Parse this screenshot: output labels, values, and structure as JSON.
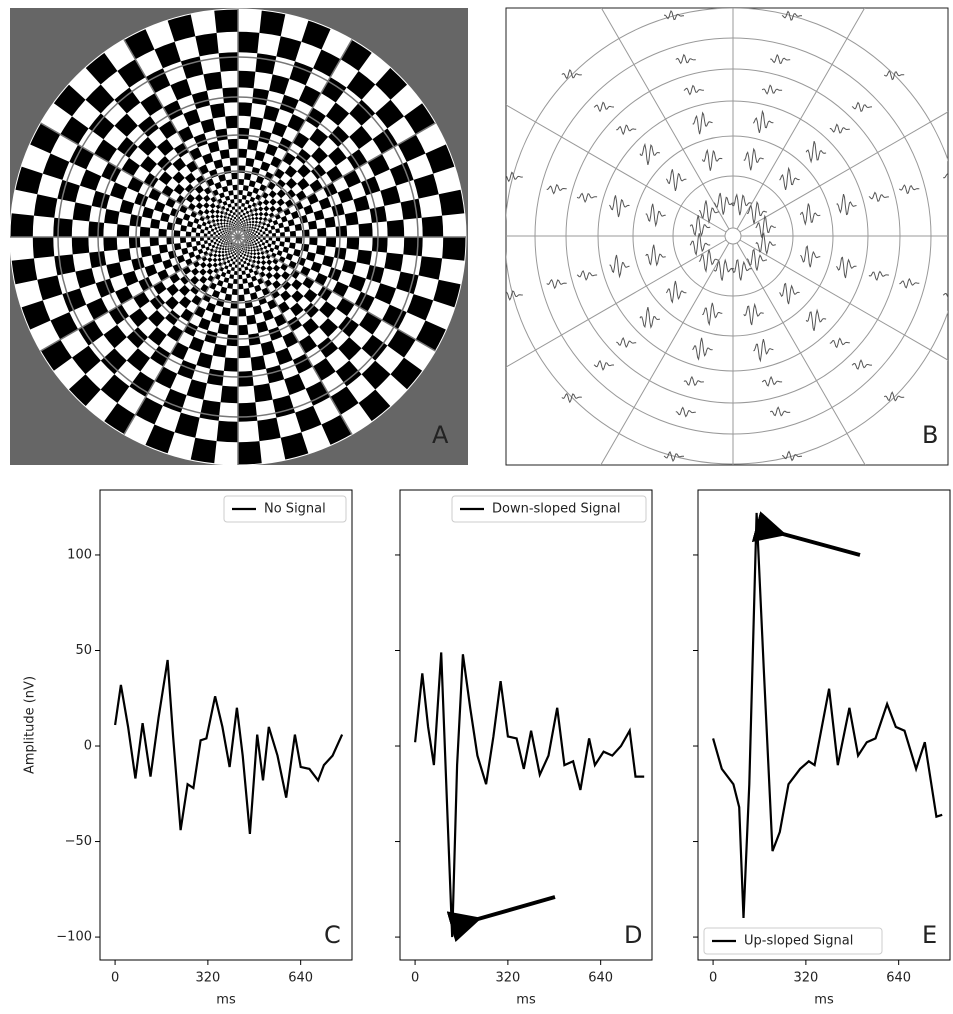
{
  "images": [
    {
      "label": "A"
    },
    {
      "label": "B"
    }
  ],
  "chart_data": [
    {
      "type": "line",
      "legend_loc": "upper right",
      "xlabel": "ms",
      "ylabel": "Amplitude (nV)",
      "panel_label": "C",
      "show_ytick_labels": true,
      "xlim": [
        -52,
        817
      ],
      "ylim": [
        -112,
        134
      ],
      "xticks": [
        0,
        320,
        640
      ],
      "yticks": [
        {
          "value": -100,
          "label": "−100"
        },
        {
          "value": -50,
          "label": "−50"
        },
        0,
        50,
        100
      ],
      "series": [
        {
          "name": "No Signal",
          "color": "#000000",
          "x": [
            0,
            20,
            45,
            70,
            95,
            122,
            150,
            181,
            200,
            226,
            250,
            270,
            295,
            315,
            345,
            370,
            395,
            420,
            440,
            465,
            490,
            510,
            530,
            560,
            590,
            620,
            640,
            670,
            700,
            720,
            750,
            783
          ],
          "values": [
            11,
            32,
            10,
            -17,
            12,
            -16,
            15,
            45,
            5,
            -44,
            -20,
            -22,
            3,
            4,
            26,
            10,
            -11,
            20,
            -5,
            -46,
            6,
            -18,
            10,
            -5,
            -27,
            6,
            -11,
            -12,
            -18,
            -10,
            -5,
            6
          ]
        }
      ]
    },
    {
      "type": "line",
      "legend_loc": "upper right",
      "xlabel": "ms",
      "panel_label": "D",
      "show_ytick_labels": false,
      "xlim": [
        -52,
        817
      ],
      "ylim": [
        -112,
        134
      ],
      "xticks": [
        0,
        320,
        640
      ],
      "yticks": [
        {
          "value": -100,
          "label": "−100"
        },
        {
          "value": -50,
          "label": "−50"
        },
        0,
        50,
        100
      ],
      "series": [
        {
          "name": "Down-sloped Signal",
          "color": "#000000",
          "x": [
            0,
            25,
            45,
            65,
            90,
            110,
            128,
            145,
            165,
            190,
            215,
            245,
            270,
            295,
            320,
            350,
            375,
            400,
            430,
            460,
            490,
            515,
            545,
            570,
            600,
            620,
            650,
            680,
            710,
            740,
            760,
            790
          ],
          "values": [
            2,
            38,
            10,
            -10,
            49,
            -30,
            -100,
            -10,
            48,
            20,
            -5,
            -20,
            5,
            34,
            5,
            4,
            -12,
            8,
            -15,
            -5,
            20,
            -10,
            -8,
            -23,
            4,
            -10,
            -3,
            -5,
            0,
            8,
            -16,
            -16
          ]
        }
      ]
    },
    {
      "type": "line",
      "legend_loc": "lower left",
      "xlabel": "ms",
      "panel_label": "E",
      "show_ytick_labels": false,
      "xlim": [
        -52,
        817
      ],
      "ylim": [
        -112,
        134
      ],
      "xticks": [
        0,
        320,
        640
      ],
      "yticks": [
        {
          "value": -100,
          "label": "−100"
        },
        {
          "value": -50,
          "label": "−50"
        },
        0,
        50,
        100
      ],
      "series": [
        {
          "name": "Up-sloped Signal",
          "color": "#000000",
          "x": [
            0,
            30,
            70,
            90,
            105,
            125,
            150,
            175,
            205,
            230,
            260,
            300,
            330,
            350,
            400,
            430,
            470,
            500,
            530,
            560,
            600,
            630,
            660,
            700,
            730,
            770,
            790
          ],
          "values": [
            4,
            -12,
            -20,
            -32,
            -90,
            -20,
            122,
            40,
            -55,
            -45,
            -20,
            -12,
            -8,
            -10,
            30,
            -10,
            20,
            -5,
            2,
            4,
            22,
            10,
            8,
            -12,
            2,
            -37,
            -36
          ]
        }
      ]
    }
  ]
}
